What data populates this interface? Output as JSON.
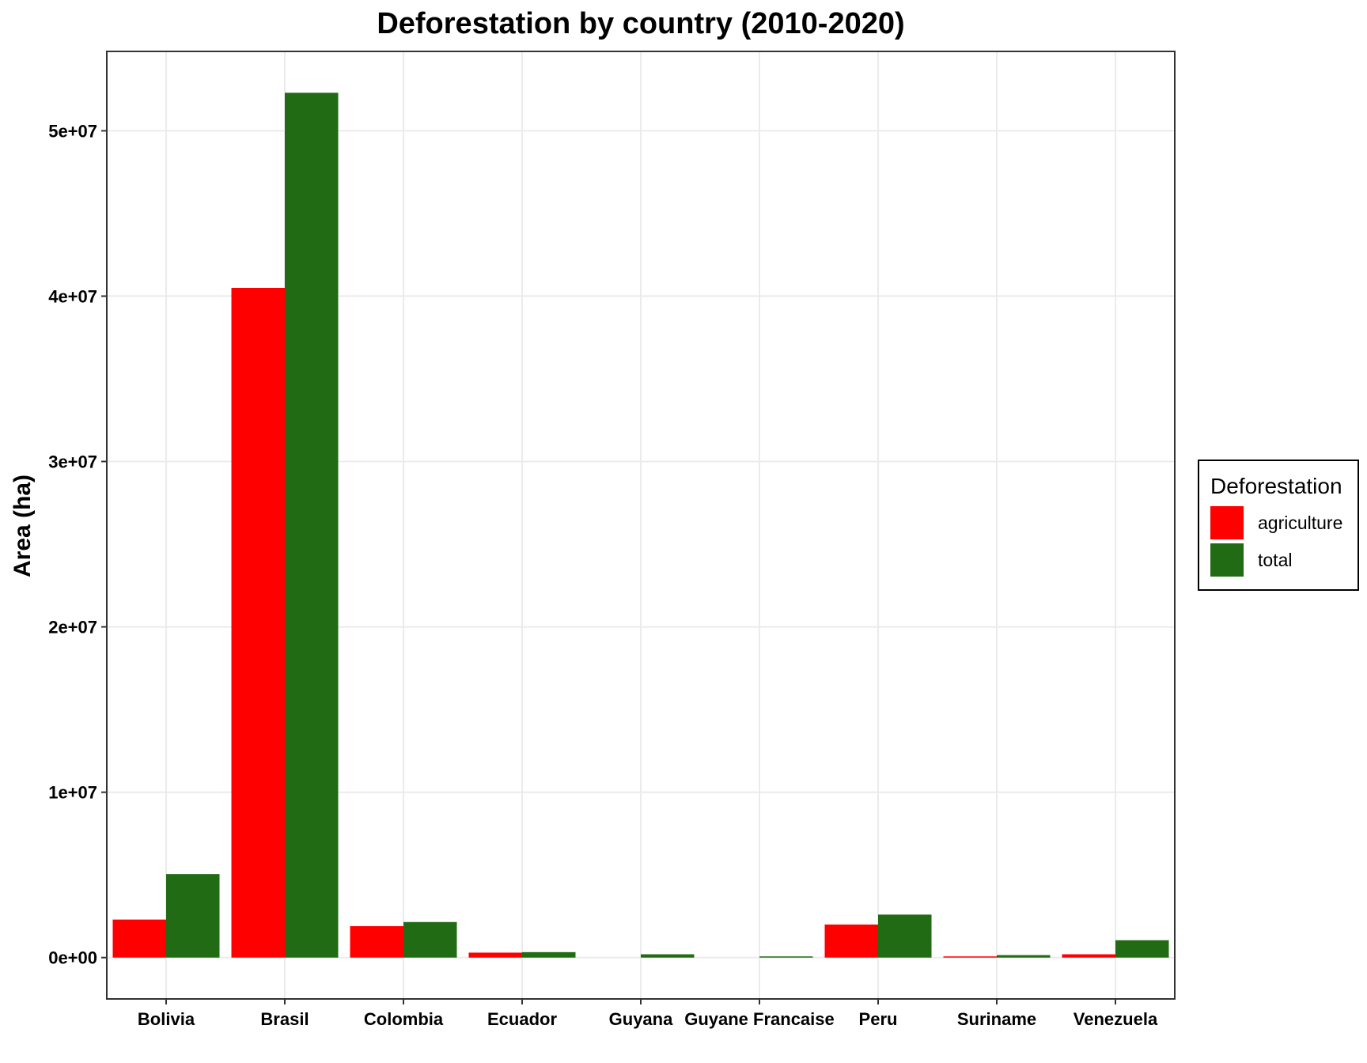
{
  "chart_data": {
    "type": "bar",
    "title": "Deforestation by country (2010-2020)",
    "xlabel": "",
    "ylabel": "Area (ha)",
    "categories": [
      "Bolivia",
      "Brasil",
      "Colombia",
      "Ecuador",
      "Guyana",
      "Guyane Francaise",
      "Peru",
      "Suriname",
      "Venezuela"
    ],
    "series": [
      {
        "name": "agriculture",
        "color": "#ff0000",
        "values": [
          2300000,
          40500000,
          1900000,
          300000,
          0,
          0,
          2000000,
          50000,
          200000
        ]
      },
      {
        "name": "total",
        "color": "#206b13",
        "values": [
          5050000,
          52300000,
          2150000,
          330000,
          200000,
          50000,
          2600000,
          150000,
          1050000
        ]
      }
    ],
    "ylim": [
      -2500000,
      54800000
    ],
    "yticks": [
      0,
      10000000,
      20000000,
      30000000,
      40000000,
      50000000
    ],
    "ytick_labels": [
      "0e+00",
      "1e+07",
      "2e+07",
      "3e+07",
      "4e+07",
      "5e+07"
    ],
    "grid": true,
    "legend": {
      "title": "Deforestation",
      "position": "right",
      "entries": [
        "agriculture",
        "total"
      ]
    }
  }
}
